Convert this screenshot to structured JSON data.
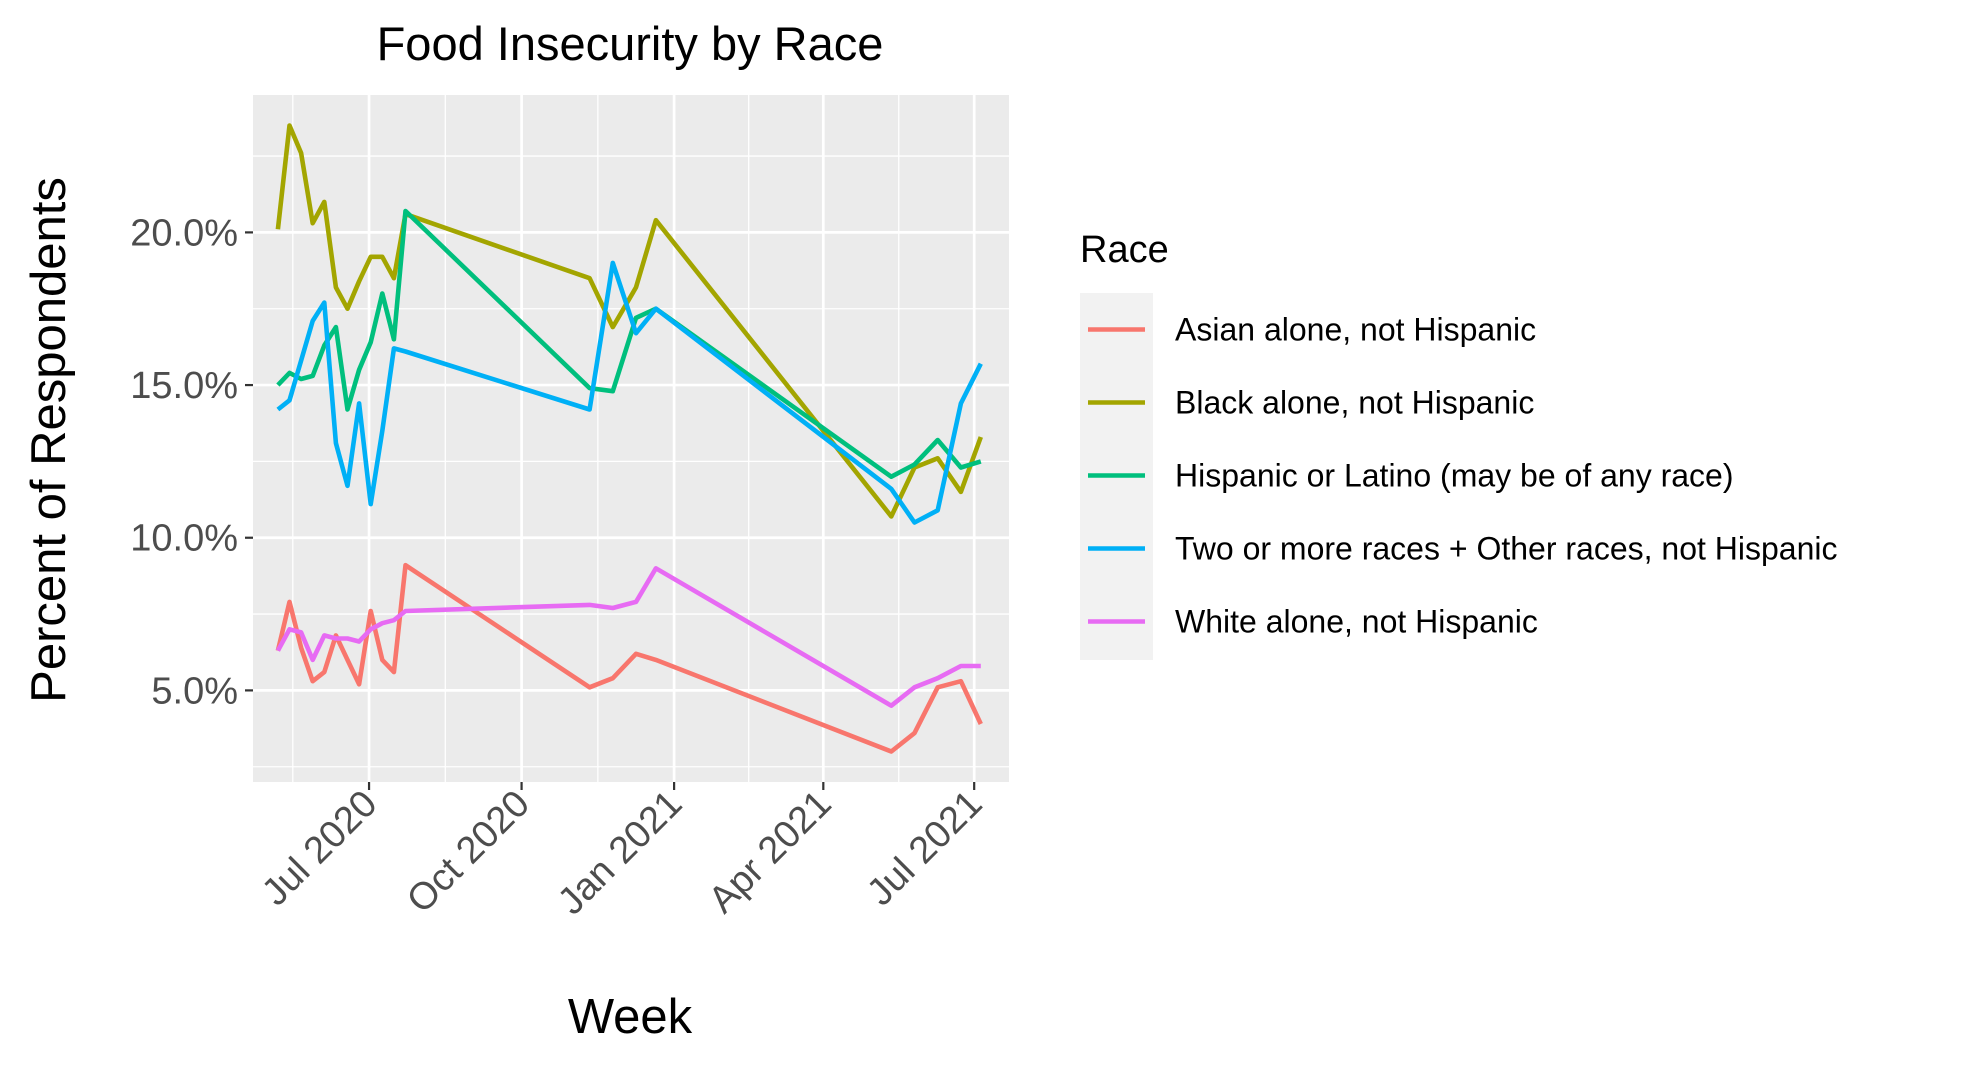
{
  "chart_data": {
    "type": "line",
    "title": "Food Insecurity by Race",
    "xlabel": "Week",
    "ylabel": "Percent of Respondents",
    "x_axis_type": "date",
    "xlim": [
      "2020-04-22",
      "2021-07-22"
    ],
    "ylim": [
      2.0,
      24.5
    ],
    "x_ticks": [
      {
        "date": "2020-07-01",
        "label": "Jul 2020"
      },
      {
        "date": "2020-10-01",
        "label": "Oct 2020"
      },
      {
        "date": "2021-01-01",
        "label": "Jan 2021"
      },
      {
        "date": "2021-04-01",
        "label": "Apr 2021"
      },
      {
        "date": "2021-07-01",
        "label": "Jul 2021"
      }
    ],
    "y_ticks": [
      {
        "value": 5,
        "label": "5.0%"
      },
      {
        "value": 10,
        "label": "10.0%"
      },
      {
        "value": 15,
        "label": "15.0%"
      },
      {
        "value": 20,
        "label": "20.0%"
      }
    ],
    "grid": true,
    "panel_background": "#ebebeb",
    "legend_title": "Race",
    "legend_position": "right",
    "x": [
      "2020-05-07",
      "2020-05-14",
      "2020-05-21",
      "2020-05-28",
      "2020-06-04",
      "2020-06-11",
      "2020-06-18",
      "2020-06-25",
      "2020-07-02",
      "2020-07-09",
      "2020-07-16",
      "2020-07-23",
      "2020-11-11",
      "2020-11-25",
      "2020-12-09",
      "2020-12-21",
      "2021-05-12",
      "2021-05-26",
      "2021-06-09",
      "2021-06-23",
      "2021-07-05"
    ],
    "series": [
      {
        "name": "Asian alone, not Hispanic",
        "color": "#F8766D",
        "values": [
          6.3,
          7.9,
          6.4,
          5.3,
          5.6,
          6.8,
          6.0,
          5.2,
          7.6,
          6.0,
          5.6,
          9.1,
          5.1,
          5.4,
          6.2,
          6.0,
          3.0,
          3.6,
          5.1,
          5.3,
          3.9
        ]
      },
      {
        "name": "Black alone, not Hispanic",
        "color": "#A3A500",
        "values": [
          20.1,
          23.5,
          22.6,
          20.3,
          21.0,
          18.2,
          17.5,
          18.4,
          19.2,
          19.2,
          18.5,
          20.6,
          18.5,
          16.9,
          18.2,
          20.4,
          10.7,
          12.3,
          12.6,
          11.5,
          13.3
        ]
      },
      {
        "name": "Hispanic or Latino (may be of any race)",
        "color": "#00BF7D",
        "values": [
          15.0,
          15.4,
          15.2,
          15.3,
          16.3,
          16.9,
          14.2,
          15.5,
          16.4,
          18.0,
          16.5,
          20.7,
          14.9,
          14.8,
          17.2,
          17.5,
          12.0,
          12.4,
          13.2,
          12.3,
          12.5
        ]
      },
      {
        "name": "Two or more races + Other races, not Hispanic",
        "color": "#00B0F6",
        "values": [
          14.2,
          14.5,
          15.8,
          17.1,
          17.7,
          13.1,
          11.7,
          14.4,
          11.1,
          13.5,
          16.2,
          16.1,
          14.2,
          19.0,
          16.7,
          17.5,
          11.6,
          10.5,
          10.9,
          14.4,
          15.7
        ]
      },
      {
        "name": "White alone, not Hispanic",
        "color": "#E76BF3",
        "values": [
          6.3,
          7.0,
          6.9,
          6.0,
          6.8,
          6.7,
          6.7,
          6.6,
          7.0,
          7.2,
          7.3,
          7.6,
          7.8,
          7.7,
          7.9,
          9.0,
          4.5,
          5.1,
          5.4,
          5.8,
          5.8
        ]
      }
    ]
  }
}
